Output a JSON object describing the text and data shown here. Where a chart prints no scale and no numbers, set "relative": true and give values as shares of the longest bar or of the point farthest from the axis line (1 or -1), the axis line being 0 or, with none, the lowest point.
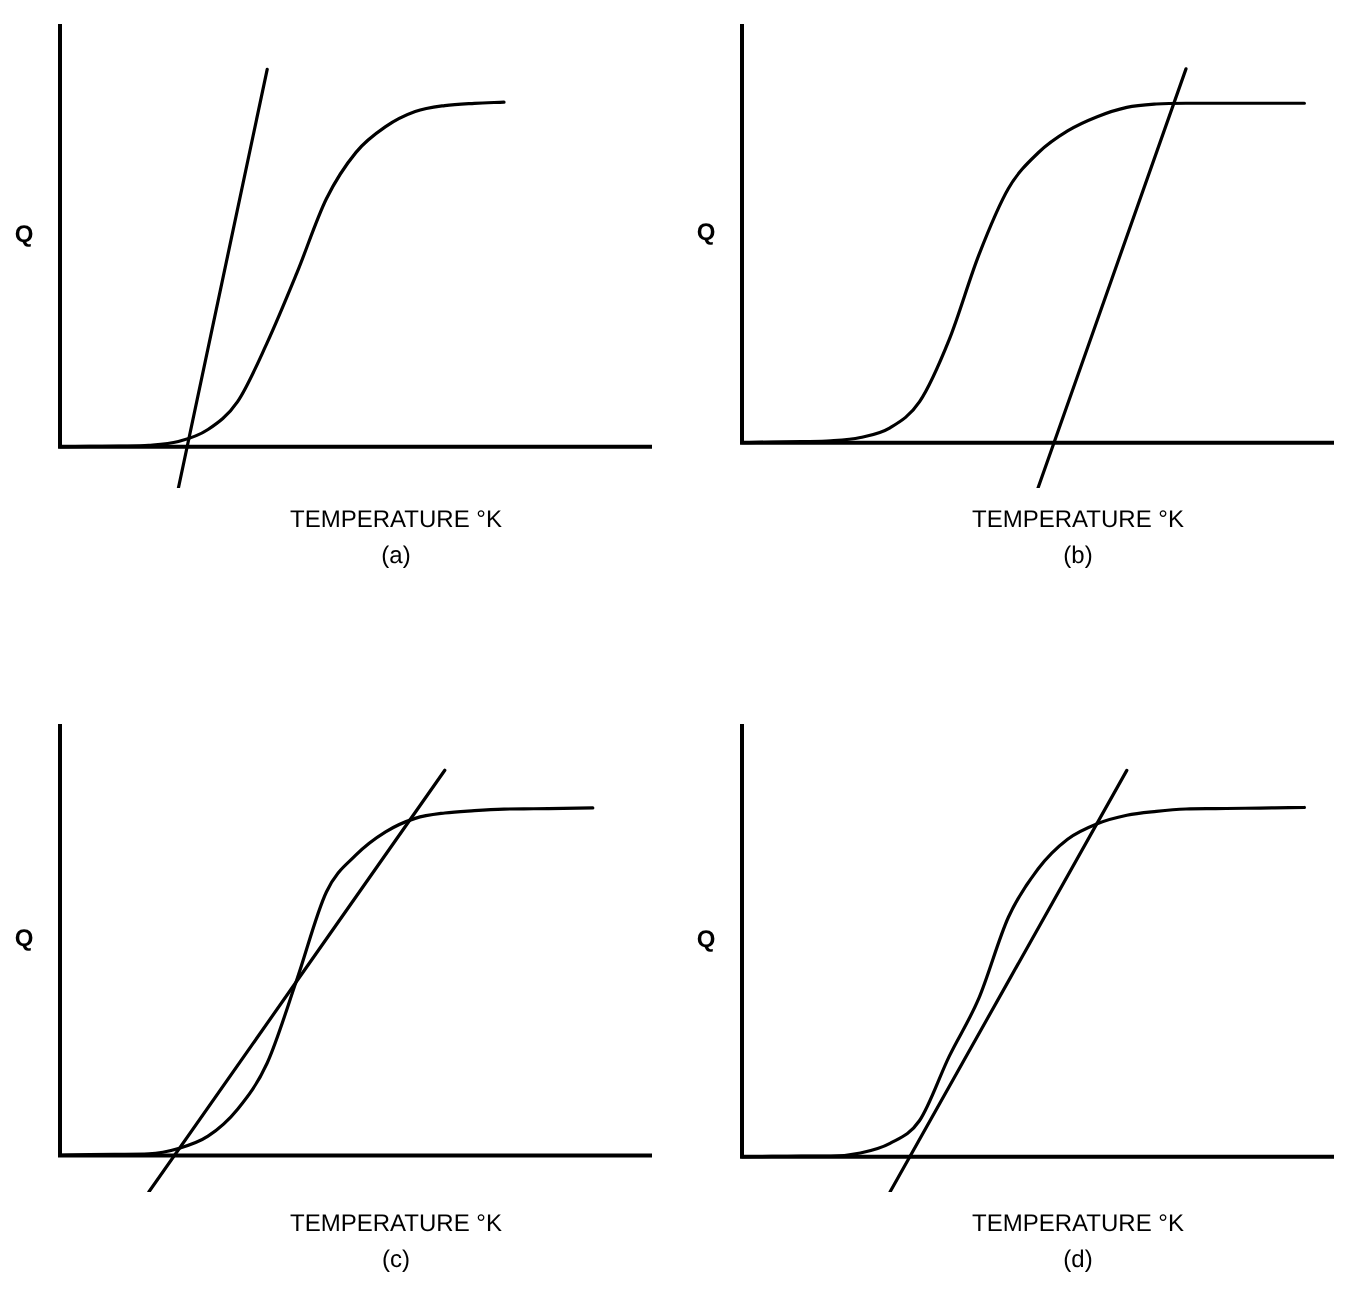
{
  "chart_data": [
    {
      "type": "line",
      "xlabel": "TEMPERATURE °K",
      "ylabel": "Q",
      "annotations": [
        "(a)"
      ],
      "relative": true,
      "marker": "none",
      "categories": [
        null,
        null,
        null,
        null,
        null,
        null,
        null,
        null,
        null,
        null,
        null,
        null,
        null,
        null,
        null,
        null,
        null,
        null,
        null,
        null,
        null
      ],
      "series": [
        {
          "color": "#000000",
          "values": [
            0,
            0.001,
            0.002,
            0.004,
            0.014,
            0.046,
            0.12,
            0.276,
            0.46,
            0.657,
            0.78,
            0.848,
            0.888,
            0.904,
            0.91,
            0.913,
            null,
            null,
            null,
            null,
            null
          ]
        },
        {
          "color": "#000000",
          "values": [
            null,
            null,
            null,
            null,
            -0.109,
            null,
            null,
            1,
            null,
            null,
            null,
            null,
            null,
            null,
            null,
            null,
            null,
            null,
            null,
            null,
            null
          ]
        }
      ]
    },
    {
      "type": "line",
      "xlabel": "TEMPERATURE °K",
      "ylabel": "Q",
      "annotations": [
        "(b)"
      ],
      "relative": true,
      "marker": "none",
      "categories": [
        null,
        null,
        null,
        null,
        null,
        null,
        null,
        null,
        null,
        null,
        null,
        null,
        null,
        null,
        null,
        null,
        null,
        null,
        null,
        null,
        null
      ],
      "series": [
        {
          "color": "#000000",
          "values": [
            0,
            0.002,
            0.003,
            0.005,
            0.014,
            0.04,
            0.11,
            0.276,
            0.502,
            0.68,
            0.775,
            0.834,
            0.872,
            0.897,
            0.906,
            0.908,
            0.908,
            0.908,
            0.908,
            0.908,
            null
          ]
        },
        {
          "color": "#000000",
          "values": [
            null,
            null,
            null,
            null,
            null,
            null,
            null,
            null,
            null,
            null,
            -0.121,
            null,
            null,
            null,
            null,
            1,
            null,
            null,
            null,
            null,
            null
          ]
        }
      ]
    },
    {
      "type": "line",
      "xlabel": "TEMPERATURE °K",
      "ylabel": "Q",
      "annotations": [
        "(c)"
      ],
      "relative": true,
      "marker": "none",
      "categories": [
        null,
        null,
        null,
        null,
        null,
        null,
        null,
        null,
        null,
        null,
        null,
        null,
        null,
        null,
        null,
        null,
        null,
        null,
        null,
        null,
        null
      ],
      "series": [
        {
          "color": "#000000",
          "values": [
            0,
            0.002,
            0.003,
            0.004,
            0.018,
            0.05,
            0.12,
            0.24,
            0.456,
            0.684,
            0.78,
            0.84,
            0.875,
            0.889,
            0.895,
            0.899,
            0.9,
            0.901,
            0.902,
            null,
            null
          ]
        },
        {
          "color": "#000000",
          "values": [
            null,
            null,
            null,
            -0.095,
            null,
            null,
            null,
            null,
            null,
            null,
            null,
            null,
            null,
            1,
            null,
            null,
            null,
            null,
            null,
            null,
            null
          ]
        }
      ]
    },
    {
      "type": "line",
      "xlabel": "TEMPERATURE °K",
      "ylabel": "Q",
      "annotations": [
        "(d)"
      ],
      "relative": true,
      "marker": "none",
      "categories": [
        null,
        null,
        null,
        null,
        null,
        null,
        null,
        null,
        null,
        null,
        null,
        null,
        null,
        null,
        null,
        null,
        null,
        null,
        null,
        null,
        null
      ],
      "series": [
        {
          "color": "#000000",
          "values": [
            0,
            0.001,
            0.002,
            0.002,
            0.01,
            0.035,
            0.094,
            0.26,
            0.41,
            0.62,
            0.745,
            0.822,
            0.862,
            0.884,
            0.894,
            0.9,
            0.901,
            0.902,
            0.903,
            0.904,
            null
          ]
        },
        {
          "color": "#000000",
          "values": [
            null,
            null,
            null,
            null,
            null,
            -0.091,
            null,
            null,
            null,
            null,
            null,
            null,
            null,
            1,
            null,
            null,
            null,
            null,
            null,
            null,
            null
          ]
        }
      ]
    }
  ]
}
